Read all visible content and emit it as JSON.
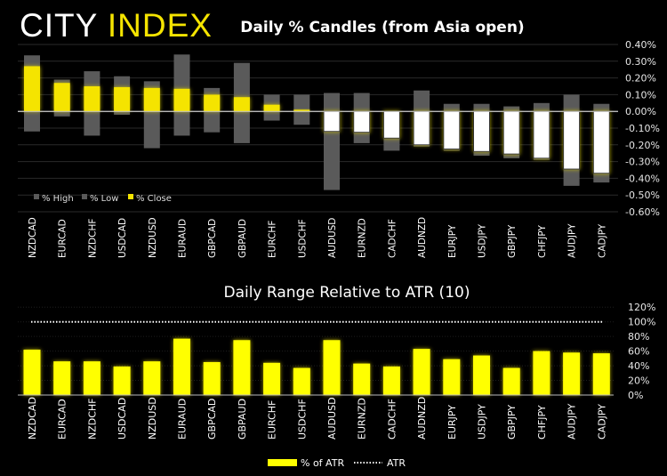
{
  "logo": {
    "part1": "CITY",
    "part2": "INDEX"
  },
  "chart_data": [
    {
      "type": "candlestick",
      "title": "Daily % Candles (from Asia open)",
      "categories": [
        "NZDCAD",
        "EURCAD",
        "NZDCHF",
        "USDCAD",
        "NZDUSD",
        "EURAUD",
        "GBPCAD",
        "GBPAUD",
        "EURCHF",
        "USDCHF",
        "AUDUSD",
        "EURNZD",
        "CADCHF",
        "AUDNZD",
        "EURJPY",
        "USDJPY",
        "GBPJPY",
        "CHFJPY",
        "AUDJPY",
        "CADJPY"
      ],
      "series": [
        {
          "name": "% High",
          "values": [
            0.335,
            0.19,
            0.24,
            0.21,
            0.18,
            0.34,
            0.14,
            0.29,
            0.1,
            0.1,
            0.11,
            0.11,
            0.0,
            0.125,
            0.045,
            0.045,
            0.03,
            0.05,
            0.1,
            0.045
          ]
        },
        {
          "name": "% Low",
          "values": [
            -0.12,
            -0.03,
            -0.145,
            -0.02,
            -0.22,
            -0.145,
            -0.125,
            -0.19,
            -0.055,
            -0.08,
            -0.47,
            -0.19,
            -0.235,
            -0.21,
            -0.235,
            -0.265,
            -0.28,
            -0.29,
            -0.445,
            -0.425
          ]
        },
        {
          "name": "% Close",
          "values": [
            0.27,
            0.17,
            0.15,
            0.145,
            0.14,
            0.135,
            0.1,
            0.085,
            0.04,
            0.01,
            -0.12,
            -0.125,
            -0.16,
            -0.2,
            -0.225,
            -0.24,
            -0.255,
            -0.28,
            -0.345,
            -0.37
          ]
        }
      ],
      "ylim": [
        -0.6,
        0.4
      ],
      "yticks": [
        "0.40%",
        "0.30%",
        "0.20%",
        "0.10%",
        "0.00%",
        "-0.10%",
        "-0.20%",
        "-0.30%",
        "-0.40%",
        "-0.50%",
        "-0.60%"
      ],
      "grid": true,
      "legend": "bottom-left",
      "colors": {
        "high_low": "#5a5a5a",
        "up": "#f5e400",
        "down": "#ffffff"
      }
    },
    {
      "type": "bar",
      "title": "Daily Range Relative to ATR (10)",
      "categories": [
        "NZDCAD",
        "EURCAD",
        "NZDCHF",
        "USDCAD",
        "NZDUSD",
        "EURAUD",
        "GBPCAD",
        "GBPAUD",
        "EURCHF",
        "USDCHF",
        "AUDUSD",
        "EURNZD",
        "CADCHF",
        "AUDNZD",
        "EURJPY",
        "USDJPY",
        "GBPJPY",
        "CHFJPY",
        "AUDJPY",
        "CADJPY"
      ],
      "series": [
        {
          "name": "% of ATR",
          "values": [
            62,
            46,
            46,
            39,
            46,
            77,
            45,
            75,
            44,
            37,
            75,
            43,
            39,
            63,
            49,
            54,
            37,
            60,
            58,
            57
          ]
        },
        {
          "name": "ATR",
          "value": 100
        }
      ],
      "ylim": [
        0,
        120
      ],
      "yticks": [
        "0%",
        "20%",
        "40%",
        "60%",
        "80%",
        "100%",
        "120%"
      ],
      "grid": true,
      "legend": "bottom",
      "colors": {
        "bar": "#ffff00",
        "atr": "#ffffff"
      }
    }
  ]
}
